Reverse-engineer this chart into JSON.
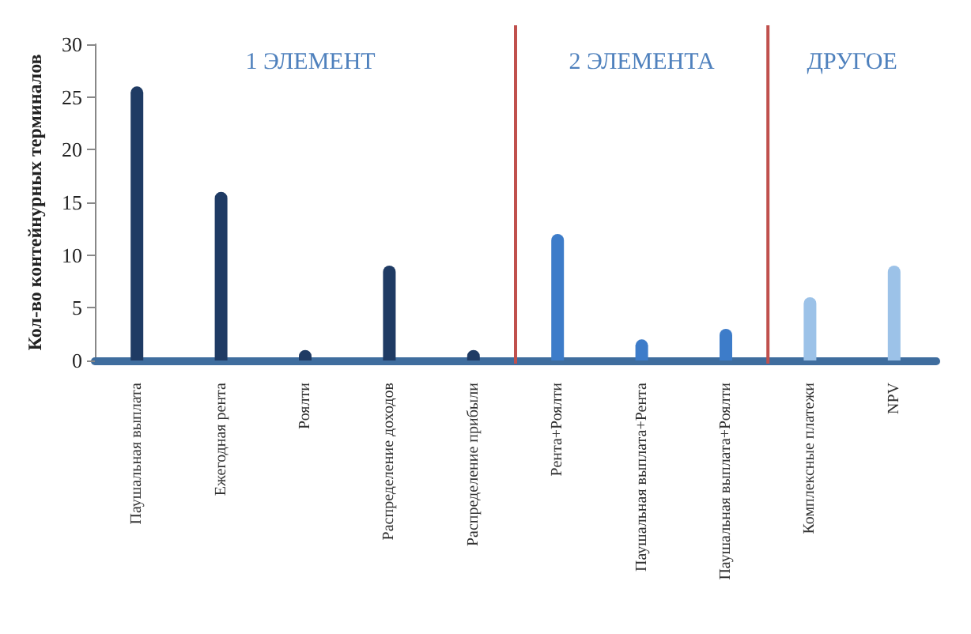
{
  "chart_data": {
    "type": "bar",
    "ylabel": "Кол-во контейнурных терминалов",
    "categories": [
      "Паушальная выплата",
      "Ежегодная рента",
      "Роялти",
      "Распределение доходов",
      "Распределение прибыли",
      "Рента+Роялти",
      "Паушальная выплата+Рента",
      "Паушальная выплата+Роялти",
      "Комплексные платежи",
      "NPV"
    ],
    "values": [
      26,
      16,
      1,
      9,
      1,
      12,
      2,
      3,
      6,
      9
    ],
    "colors": [
      "#1f3b64",
      "#1f3b64",
      "#1f3b64",
      "#1f3b64",
      "#1f3b64",
      "#3d7cc9",
      "#3d7cc9",
      "#3d7cc9",
      "#9cc2e8",
      "#9cc2e8"
    ],
    "ylim": [
      0,
      30
    ],
    "yticks": [
      0,
      5,
      10,
      15,
      20,
      25,
      30
    ],
    "grid": false,
    "annotations": [
      "1 ЭЛЕМЕНТ",
      "2 ЭЛЕМЕНТА",
      "ДРУГОЕ"
    ]
  }
}
